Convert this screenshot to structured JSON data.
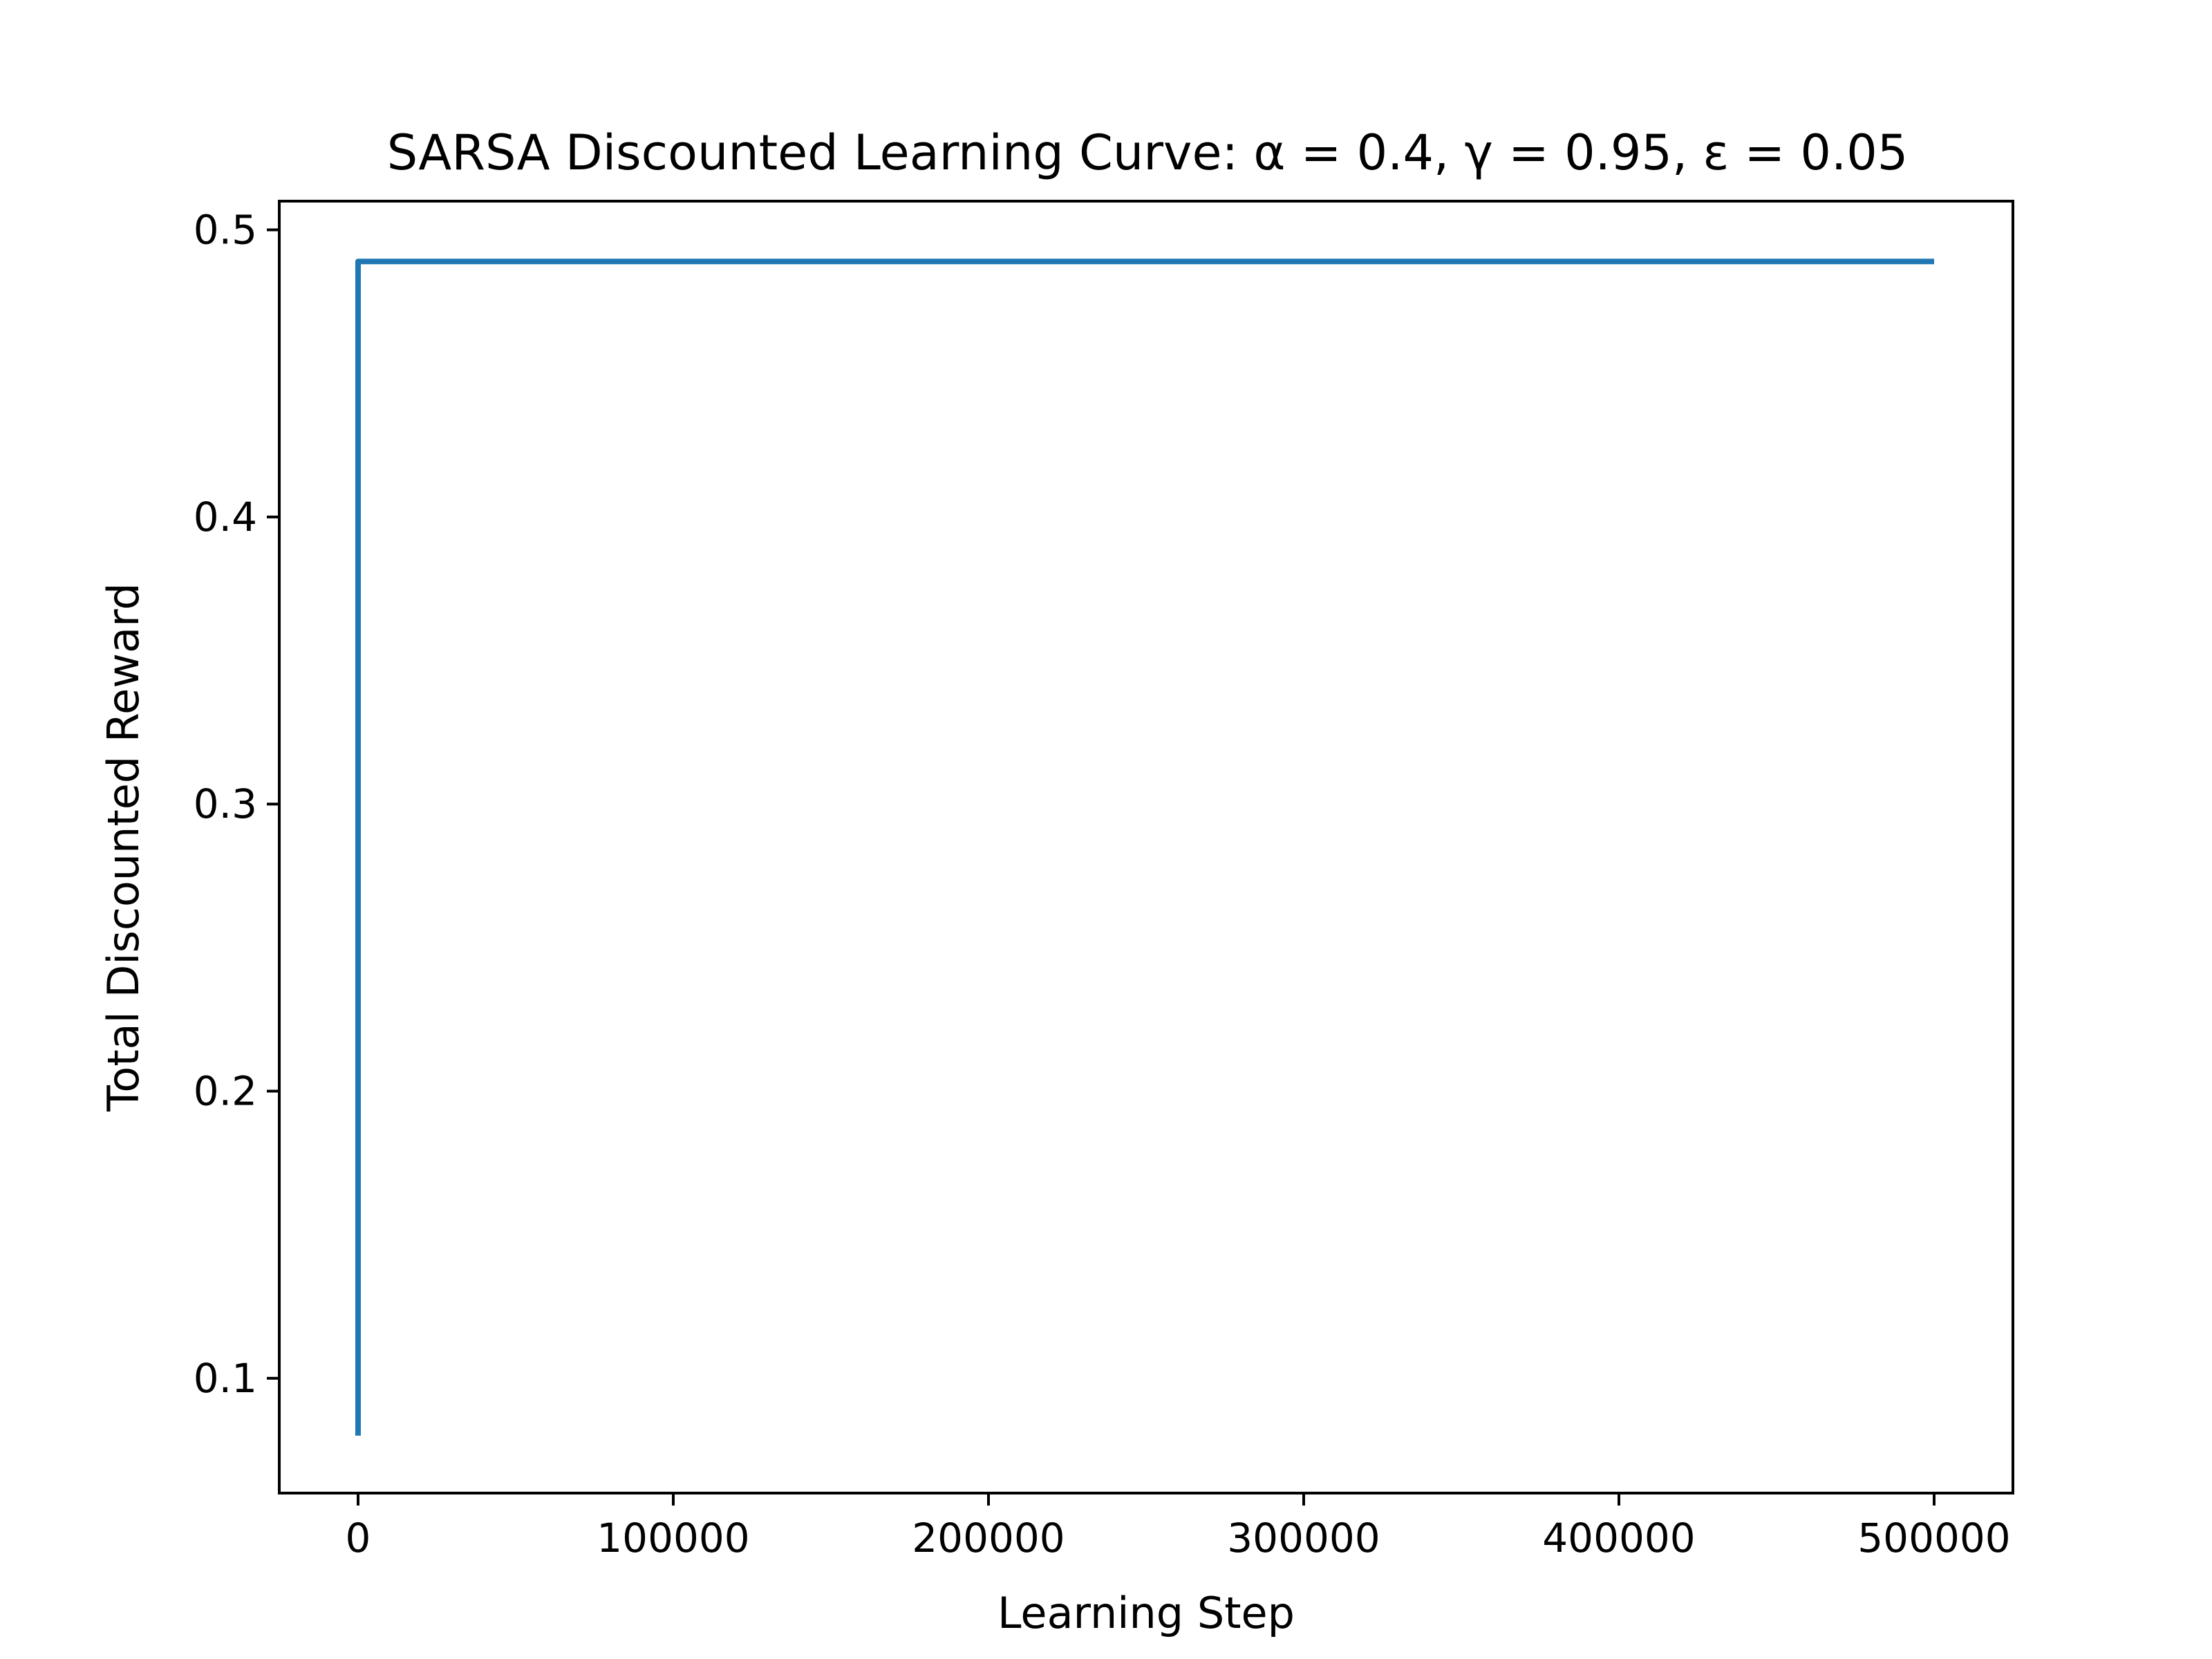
{
  "chart_data": {
    "type": "line",
    "title": "SARSA Discounted Learning Curve: α = 0.4, γ = 0.95, ε = 0.05",
    "xlabel": "Learning Step",
    "ylabel": "Total Discounted Reward",
    "xlim": [
      -25000,
      525000
    ],
    "ylim": [
      0.06,
      0.51
    ],
    "x_ticks": [
      0,
      100000,
      200000,
      300000,
      400000,
      500000
    ],
    "x_tick_labels": [
      "0",
      "100000",
      "200000",
      "300000",
      "400000",
      "500000"
    ],
    "y_ticks": [
      0.1,
      0.2,
      0.3,
      0.4,
      0.5
    ],
    "y_tick_labels": [
      "0.1",
      "0.2",
      "0.3",
      "0.4",
      "0.5"
    ],
    "grid": false,
    "series_color": "#1f77b4",
    "series": [
      {
        "x": [
          0,
          0,
          500,
          500000
        ],
        "y": [
          0.08,
          0.489,
          0.489,
          0.489
        ]
      }
    ]
  }
}
